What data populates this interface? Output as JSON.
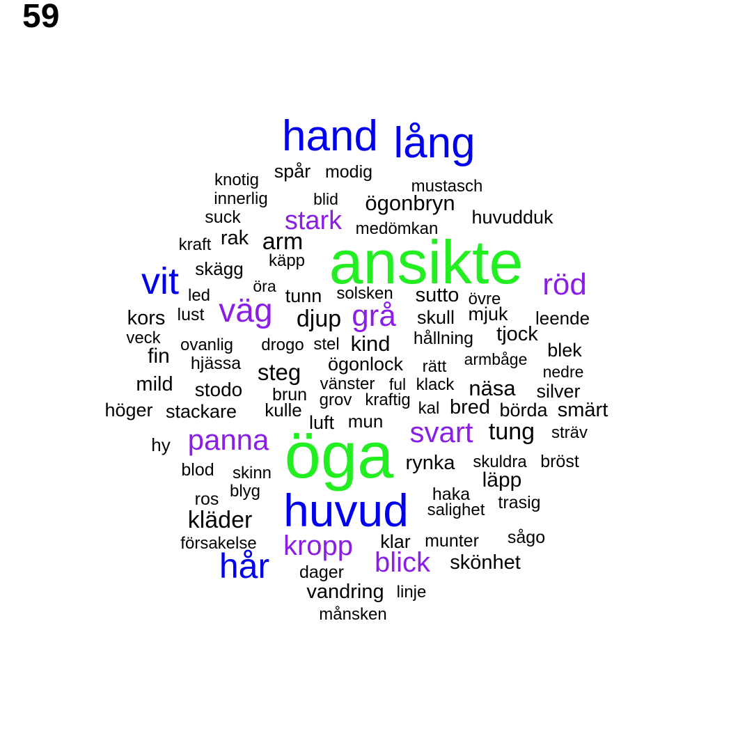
{
  "panel_label": "59",
  "colors": {
    "green": "#22ee22",
    "blue": "#0000ee",
    "purple": "#8a1ee6",
    "black": "#000000"
  },
  "words": [
    {
      "text": "ansikte",
      "color": "green"
    },
    {
      "text": "öga",
      "color": "green"
    },
    {
      "text": "huvud",
      "color": "blue"
    },
    {
      "text": "hand",
      "color": "blue"
    },
    {
      "text": "lång",
      "color": "blue"
    },
    {
      "text": "vit",
      "color": "blue"
    },
    {
      "text": "hår",
      "color": "blue"
    },
    {
      "text": "röd",
      "color": "purple"
    },
    {
      "text": "väg",
      "color": "purple"
    },
    {
      "text": "grå",
      "color": "purple"
    },
    {
      "text": "panna",
      "color": "purple"
    },
    {
      "text": "svart",
      "color": "purple"
    },
    {
      "text": "stark",
      "color": "purple"
    },
    {
      "text": "kropp",
      "color": "purple"
    },
    {
      "text": "blick",
      "color": "purple"
    },
    {
      "text": "spår",
      "color": "black"
    },
    {
      "text": "modig",
      "color": "black"
    },
    {
      "text": "knotig",
      "color": "black"
    },
    {
      "text": "mustasch",
      "color": "black"
    },
    {
      "text": "innerlig",
      "color": "black"
    },
    {
      "text": "blid",
      "color": "black"
    },
    {
      "text": "ögonbryn",
      "color": "black"
    },
    {
      "text": "suck",
      "color": "black"
    },
    {
      "text": "huvudduk",
      "color": "black"
    },
    {
      "text": "medömkan",
      "color": "black"
    },
    {
      "text": "kraft",
      "color": "black"
    },
    {
      "text": "rak",
      "color": "black"
    },
    {
      "text": "arm",
      "color": "black"
    },
    {
      "text": "skägg",
      "color": "black"
    },
    {
      "text": "käpp",
      "color": "black"
    },
    {
      "text": "öra",
      "color": "black"
    },
    {
      "text": "led",
      "color": "black"
    },
    {
      "text": "tunn",
      "color": "black"
    },
    {
      "text": "solsken",
      "color": "black"
    },
    {
      "text": "sutto",
      "color": "black"
    },
    {
      "text": "övre",
      "color": "black"
    },
    {
      "text": "lust",
      "color": "black"
    },
    {
      "text": "kors",
      "color": "black"
    },
    {
      "text": "djup",
      "color": "black"
    },
    {
      "text": "skull",
      "color": "black"
    },
    {
      "text": "mjuk",
      "color": "black"
    },
    {
      "text": "leende",
      "color": "black"
    },
    {
      "text": "veck",
      "color": "black"
    },
    {
      "text": "tjock",
      "color": "black"
    },
    {
      "text": "hållning",
      "color": "black"
    },
    {
      "text": "ovanlig",
      "color": "black"
    },
    {
      "text": "drogo",
      "color": "black"
    },
    {
      "text": "stel",
      "color": "black"
    },
    {
      "text": "kind",
      "color": "black"
    },
    {
      "text": "blek",
      "color": "black"
    },
    {
      "text": "fin",
      "color": "black"
    },
    {
      "text": "hjässa",
      "color": "black"
    },
    {
      "text": "ögonlock",
      "color": "black"
    },
    {
      "text": "rätt",
      "color": "black"
    },
    {
      "text": "armbåge",
      "color": "black"
    },
    {
      "text": "nedre",
      "color": "black"
    },
    {
      "text": "steg",
      "color": "black"
    },
    {
      "text": "mild",
      "color": "black"
    },
    {
      "text": "stodo",
      "color": "black"
    },
    {
      "text": "vänster",
      "color": "black"
    },
    {
      "text": "ful",
      "color": "black"
    },
    {
      "text": "klack",
      "color": "black"
    },
    {
      "text": "näsa",
      "color": "black"
    },
    {
      "text": "silver",
      "color": "black"
    },
    {
      "text": "brun",
      "color": "black"
    },
    {
      "text": "grov",
      "color": "black"
    },
    {
      "text": "kraftig",
      "color": "black"
    },
    {
      "text": "höger",
      "color": "black"
    },
    {
      "text": "stackare",
      "color": "black"
    },
    {
      "text": "kulle",
      "color": "black"
    },
    {
      "text": "kal",
      "color": "black"
    },
    {
      "text": "bred",
      "color": "black"
    },
    {
      "text": "börda",
      "color": "black"
    },
    {
      "text": "smärt",
      "color": "black"
    },
    {
      "text": "luft",
      "color": "black"
    },
    {
      "text": "mun",
      "color": "black"
    },
    {
      "text": "tung",
      "color": "black"
    },
    {
      "text": "sträv",
      "color": "black"
    },
    {
      "text": "hy",
      "color": "black"
    },
    {
      "text": "rynka",
      "color": "black"
    },
    {
      "text": "skuldra",
      "color": "black"
    },
    {
      "text": "bröst",
      "color": "black"
    },
    {
      "text": "blod",
      "color": "black"
    },
    {
      "text": "skinn",
      "color": "black"
    },
    {
      "text": "läpp",
      "color": "black"
    },
    {
      "text": "ros",
      "color": "black"
    },
    {
      "text": "blyg",
      "color": "black"
    },
    {
      "text": "haka",
      "color": "black"
    },
    {
      "text": "trasig",
      "color": "black"
    },
    {
      "text": "salighet",
      "color": "black"
    },
    {
      "text": "kläder",
      "color": "black"
    },
    {
      "text": "sågo",
      "color": "black"
    },
    {
      "text": "försakelse",
      "color": "black"
    },
    {
      "text": "klar",
      "color": "black"
    },
    {
      "text": "munter",
      "color": "black"
    },
    {
      "text": "skönhet",
      "color": "black"
    },
    {
      "text": "dager",
      "color": "black"
    },
    {
      "text": "vandring",
      "color": "black"
    },
    {
      "text": "linje",
      "color": "black"
    },
    {
      "text": "månsken",
      "color": "black"
    }
  ]
}
